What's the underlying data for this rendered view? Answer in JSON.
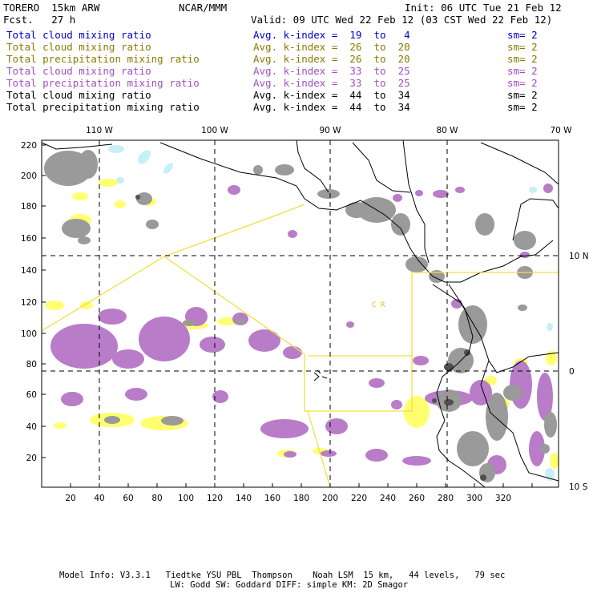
{
  "header": {
    "model": "TORERO  15km ARW",
    "org": "NCAR/MMM",
    "init": "Init: 06 UTC Tue 21 Feb 12",
    "fcst": "Fcst.   27 h",
    "valid": "Valid: 09 UTC Wed 22 Feb 12 (03 CST Wed 22 Feb 12)"
  },
  "legend": [
    {
      "field": "Total cloud mixing ratio",
      "kindex": "Avg. k-index =  19  to   4",
      "sm": "sm= 2",
      "color": "#0000cc"
    },
    {
      "field": "Total cloud mixing ratio",
      "kindex": "Avg. k-index =  26  to  20",
      "sm": "sm= 2",
      "color": "#8a7a00"
    },
    {
      "field": "Total precipitation mixing ratio",
      "kindex": "Avg. k-index =  26  to  20",
      "sm": "sm= 2",
      "color": "#8a7a00"
    },
    {
      "field": "Total cloud mixing ratio",
      "kindex": "Avg. k-index =  33  to  25",
      "sm": "sm= 2",
      "color": "#a050c0"
    },
    {
      "field": "Total precipitation mixing ratio",
      "kindex": "Avg. k-index =  33  to  25",
      "sm": "sm= 2",
      "color": "#a050c0"
    },
    {
      "field": "Total cloud mixing ratio",
      "kindex": "Avg. k-index =  44  to  34",
      "sm": "sm= 2",
      "color": "#000000"
    },
    {
      "field": "Total precipitation mixing ratio",
      "kindex": "Avg. k-index =  44  to  34",
      "sm": "sm= 2",
      "color": "#000000"
    }
  ],
  "map": {
    "lon_labels": [
      "110 W",
      "100 W",
      "90 W",
      "80 W",
      "70 W"
    ],
    "lat_labels": [
      "10 N",
      "0",
      "10 S"
    ],
    "x_ticks": [
      "20",
      "40",
      "60",
      "80",
      "100",
      "120",
      "140",
      "160",
      "180",
      "200",
      "220",
      "240",
      "260",
      "280",
      "300",
      "320"
    ],
    "y_ticks": [
      "220",
      "200",
      "180",
      "160",
      "140",
      "120",
      "100",
      "80",
      "60",
      "40",
      "20"
    ],
    "region_label": "C  R",
    "colors": {
      "cloud_light": "#c8eef8",
      "precip_yellow": "#ffff70",
      "purple": "#b87cc8",
      "gray": "#9a9a9a",
      "dark": "#505050",
      "nest": "#f0e040"
    }
  },
  "footer": {
    "line1": "Model Info: V3.3.1   Tiedtke YSU PBL  Thompson    Noah LSM  15 km,   44 levels,   79 sec",
    "line2": "LW: Godd SW: Goddard DIFF: simple KM: 2D Smagor"
  }
}
